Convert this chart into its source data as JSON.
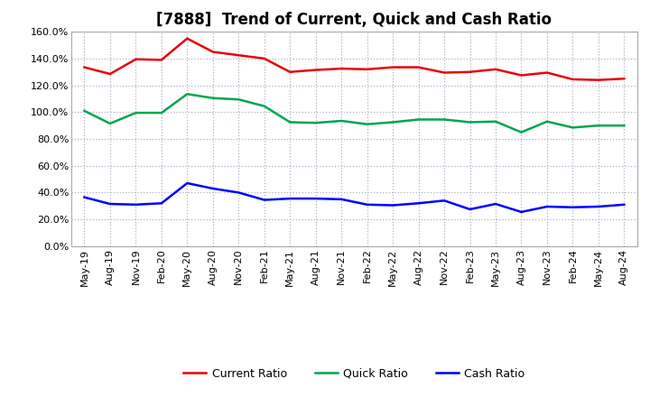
{
  "title": "[7888]  Trend of Current, Quick and Cash Ratio",
  "x_labels": [
    "May-19",
    "Aug-19",
    "Nov-19",
    "Feb-20",
    "May-20",
    "Aug-20",
    "Nov-20",
    "Feb-21",
    "May-21",
    "Aug-21",
    "Nov-21",
    "Feb-22",
    "May-22",
    "Aug-22",
    "Nov-22",
    "Feb-23",
    "May-23",
    "Aug-23",
    "Nov-23",
    "Feb-24",
    "May-24",
    "Aug-24"
  ],
  "current_ratio": [
    133.5,
    128.5,
    139.5,
    139.0,
    155.0,
    145.0,
    142.5,
    140.0,
    130.0,
    131.5,
    132.5,
    132.0,
    133.5,
    133.5,
    129.5,
    130.0,
    132.0,
    127.5,
    129.5,
    124.5,
    124.0,
    125.0
  ],
  "quick_ratio": [
    101.0,
    91.5,
    99.5,
    99.5,
    113.5,
    110.5,
    109.5,
    104.5,
    92.5,
    92.0,
    93.5,
    91.0,
    92.5,
    94.5,
    94.5,
    92.5,
    93.0,
    85.0,
    93.0,
    88.5,
    90.0,
    90.0
  ],
  "cash_ratio": [
    36.5,
    31.5,
    31.0,
    32.0,
    47.0,
    43.0,
    40.0,
    34.5,
    35.5,
    35.5,
    35.0,
    31.0,
    30.5,
    32.0,
    34.0,
    27.5,
    31.5,
    25.5,
    29.5,
    29.0,
    29.5,
    31.0
  ],
  "current_color": "#e8000b",
  "quick_color": "#00a550",
  "cash_color": "#0000ff",
  "ylim": [
    0,
    160
  ],
  "yticks": [
    0,
    20,
    40,
    60,
    80,
    100,
    120,
    140,
    160
  ],
  "background_color": "#ffffff",
  "plot_bg_color": "#ffffff",
  "grid_color": "#b0b0c8",
  "line_width": 1.8,
  "title_fontsize": 12,
  "legend_fontsize": 9,
  "tick_fontsize": 8
}
